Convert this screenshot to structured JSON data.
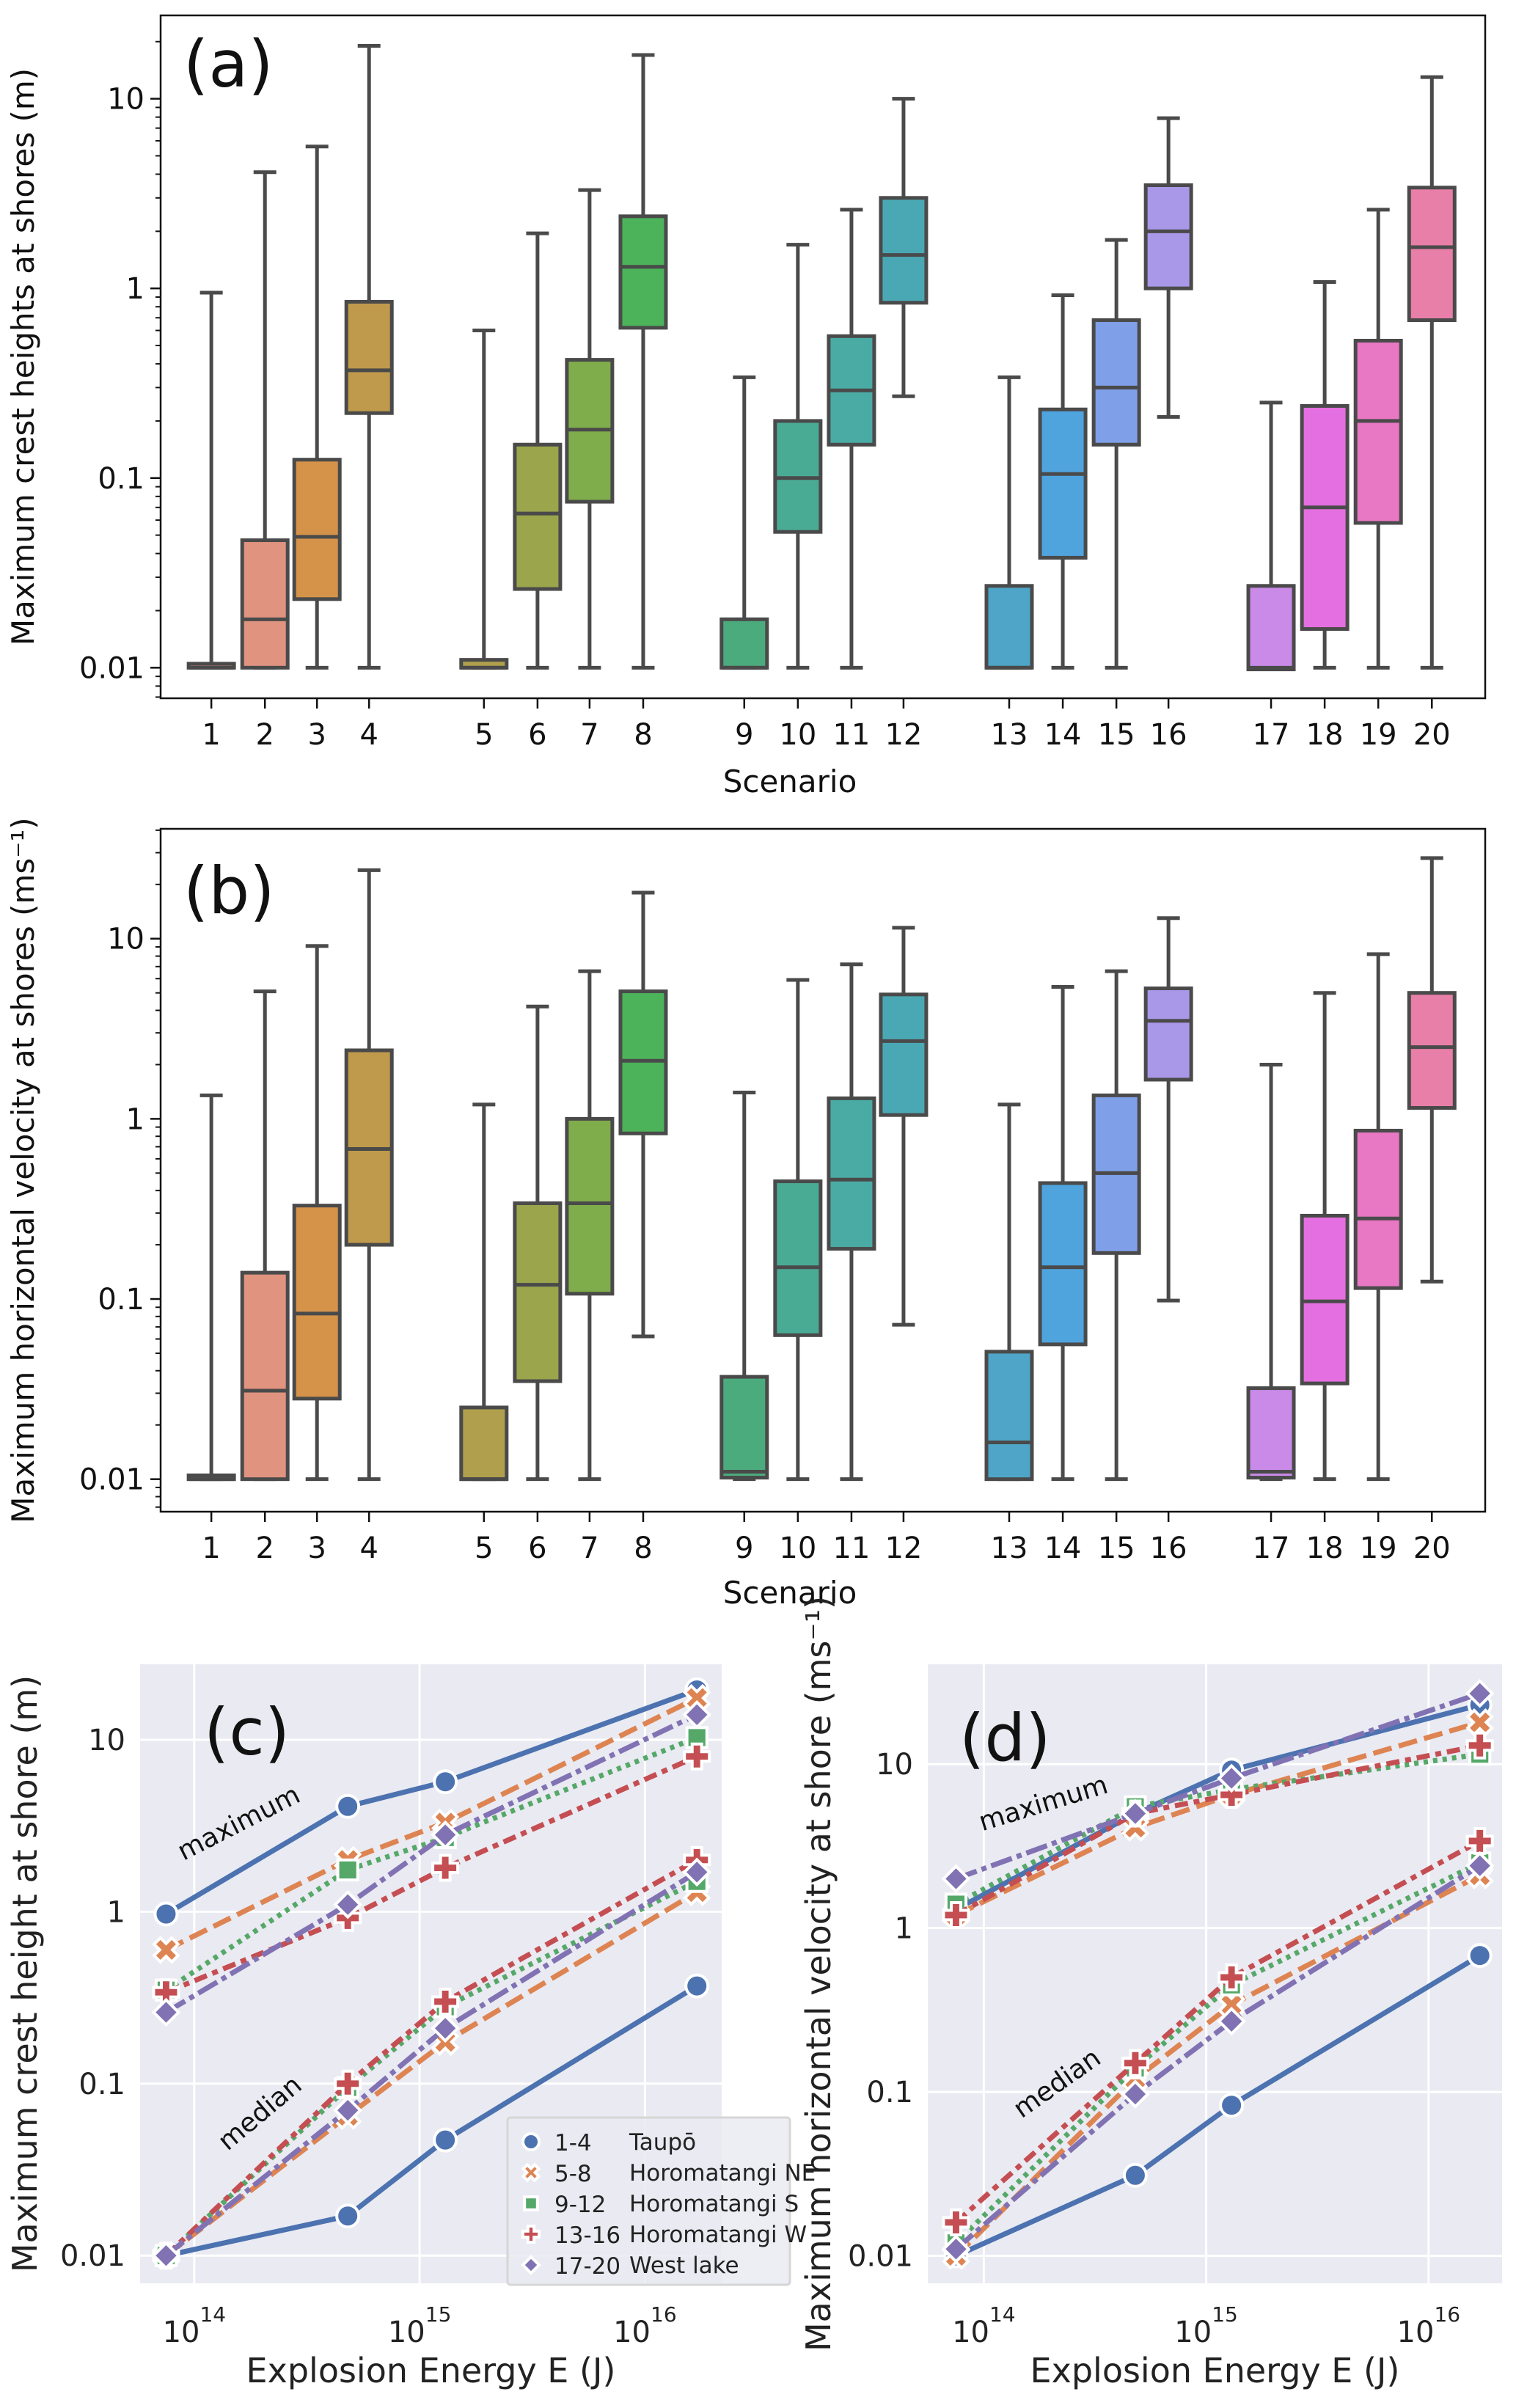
{
  "chart_data": [
    {
      "type": "box",
      "panel_label": "(a)",
      "xlabel": "Scenario",
      "ylabel": "Maximum crest heights at shores (m)",
      "yscale": "log",
      "ylim": [
        0.0069,
        27.5
      ],
      "yticks": [
        0.01,
        0.1,
        1,
        10
      ],
      "ytick_labels": [
        "0.01",
        "0.1",
        "1",
        "10"
      ],
      "categories": [
        "1",
        "2",
        "3",
        "4",
        "5",
        "6",
        "7",
        "8",
        "9",
        "10",
        "11",
        "12",
        "13",
        "14",
        "15",
        "16",
        "17",
        "18",
        "19",
        "20"
      ],
      "box_stats_order": [
        "whisker_low",
        "q1",
        "median",
        "q3",
        "whisker_high"
      ],
      "boxes": [
        [
          0.01,
          0.01,
          0.01,
          0.0105,
          0.95
        ],
        [
          0.01,
          0.01,
          0.018,
          0.047,
          4.1
        ],
        [
          0.01,
          0.023,
          0.049,
          0.125,
          5.6
        ],
        [
          0.01,
          0.22,
          0.37,
          0.85,
          19
        ],
        [
          0.01,
          0.01,
          0.01,
          0.011,
          0.6
        ],
        [
          0.01,
          0.026,
          0.065,
          0.15,
          1.95
        ],
        [
          0.01,
          0.075,
          0.18,
          0.42,
          3.3
        ],
        [
          0.01,
          0.62,
          1.3,
          2.4,
          17
        ],
        [
          0.01,
          0.01,
          0.01,
          0.018,
          0.34
        ],
        [
          0.01,
          0.052,
          0.1,
          0.2,
          1.7
        ],
        [
          0.01,
          0.15,
          0.29,
          0.56,
          2.6
        ],
        [
          0.27,
          0.84,
          1.5,
          3.0,
          10
        ],
        [
          0.01,
          0.01,
          0.01,
          0.027,
          0.34
        ],
        [
          0.01,
          0.038,
          0.105,
          0.23,
          0.92
        ],
        [
          0.01,
          0.15,
          0.3,
          0.68,
          1.8
        ],
        [
          0.21,
          1.0,
          2.0,
          3.5,
          7.9
        ],
        [
          0.01,
          0.0098,
          0.01,
          0.027,
          0.25
        ],
        [
          0.01,
          0.016,
          0.07,
          0.24,
          1.08
        ],
        [
          0.01,
          0.058,
          0.2,
          0.53,
          2.6
        ],
        [
          0.01,
          0.68,
          1.65,
          3.4,
          13
        ]
      ],
      "colors": [
        "#d98b7e",
        "#e0937f",
        "#d5934a",
        "#bf9a4c",
        "#b09f4c",
        "#9aa54c",
        "#80ad4c",
        "#4cb35a",
        "#4cab7d",
        "#4aab95",
        "#4aaba5",
        "#4aa8b4",
        "#4ea5c7",
        "#4fa4de",
        "#7f9fe8",
        "#a997e8",
        "#c98ae8",
        "#e46fe0",
        "#e877c4",
        "#e87fa8"
      ],
      "grid": false
    },
    {
      "type": "box",
      "panel_label": "(b)",
      "xlabel": "Scenario",
      "ylabel": "Maximum horizontal velocity at shores (ms⁻¹)",
      "yscale": "log",
      "ylim": [
        0.0066,
        40.7
      ],
      "yticks": [
        0.01,
        0.1,
        1,
        10
      ],
      "ytick_labels": [
        "0.01",
        "0.1",
        "1",
        "10"
      ],
      "categories": [
        "1",
        "2",
        "3",
        "4",
        "5",
        "6",
        "7",
        "8",
        "9",
        "10",
        "11",
        "12",
        "13",
        "14",
        "15",
        "16",
        "17",
        "18",
        "19",
        "20"
      ],
      "box_stats_order": [
        "whisker_low",
        "q1",
        "median",
        "q3",
        "whisker_high"
      ],
      "boxes": [
        [
          0.01,
          0.01,
          0.01,
          0.0105,
          1.35
        ],
        [
          0.01,
          0.01,
          0.031,
          0.14,
          5.1
        ],
        [
          0.01,
          0.028,
          0.083,
          0.33,
          9.1
        ],
        [
          0.01,
          0.2,
          0.68,
          2.4,
          24
        ],
        [
          0.01,
          0.01,
          0.01,
          0.025,
          1.2
        ],
        [
          0.01,
          0.035,
          0.12,
          0.34,
          4.2
        ],
        [
          0.01,
          0.107,
          0.34,
          1.0,
          6.6
        ],
        [
          0.062,
          0.83,
          2.1,
          5.1,
          18
        ],
        [
          0.01,
          0.0102,
          0.011,
          0.037,
          1.4
        ],
        [
          0.01,
          0.063,
          0.15,
          0.45,
          5.9
        ],
        [
          0.01,
          0.19,
          0.46,
          1.3,
          7.2
        ],
        [
          0.072,
          1.05,
          2.7,
          4.9,
          11.5
        ],
        [
          0.01,
          0.01,
          0.016,
          0.051,
          1.2
        ],
        [
          0.01,
          0.056,
          0.15,
          0.44,
          5.4
        ],
        [
          0.01,
          0.18,
          0.5,
          1.35,
          6.6
        ],
        [
          0.098,
          1.65,
          3.5,
          5.3,
          13
        ],
        [
          0.01,
          0.0102,
          0.011,
          0.032,
          2.0
        ],
        [
          0.01,
          0.034,
          0.097,
          0.29,
          5.0
        ],
        [
          0.01,
          0.115,
          0.28,
          0.86,
          8.2
        ],
        [
          0.125,
          1.15,
          2.5,
          5.0,
          28
        ]
      ],
      "colors": [
        "#d98b7e",
        "#e0937f",
        "#d5934a",
        "#bf9a4c",
        "#b09f4c",
        "#9aa54c",
        "#80ad4c",
        "#4cb35a",
        "#4cab7d",
        "#4aab95",
        "#4aaba5",
        "#4aa8b4",
        "#4ea5c7",
        "#4fa4de",
        "#7f9fe8",
        "#a997e8",
        "#c98ae8",
        "#e46fe0",
        "#e877c4",
        "#e87fa8"
      ],
      "grid": false
    },
    {
      "type": "line",
      "panel_label": "(c)",
      "xlabel": "Explosion Energy E (J)",
      "ylabel": "Maximum crest height at shore (m)",
      "xscale": "log",
      "yscale": "log",
      "xlim": [
        57500000000000.0,
        2.19e+16
      ],
      "ylim": [
        0.0069,
        27.5
      ],
      "xticks": [
        100000000000000.0,
        1000000000000000.0,
        1e+16
      ],
      "xtick_labels": [
        {
          "base": "10",
          "exp": "14"
        },
        {
          "base": "10",
          "exp": "15"
        },
        {
          "base": "10",
          "exp": "16"
        }
      ],
      "yticks": [
        0.01,
        0.1,
        1,
        10
      ],
      "ytick_labels": [
        "0.01",
        "0.1",
        "1",
        "10"
      ],
      "x": [
        75000000000000.0,
        480000000000000.0,
        1300000000000000.0,
        1.7e+16
      ],
      "annotations": [
        "maximum",
        "median"
      ],
      "grid": true,
      "background": "#eaeaf2",
      "legend_position": "bottom-right",
      "groups": [
        {
          "range": "1-4",
          "name": "Taupō",
          "color": "#4c72b0",
          "marker": "circle",
          "line": "solid",
          "maximum": [
            0.97,
            4.1,
            5.7,
            19.5
          ],
          "median": [
            0.01,
            0.017,
            0.047,
            0.37
          ]
        },
        {
          "range": "5-8",
          "name": "Horomatangi NE",
          "color": "#dd8452",
          "marker": "x",
          "line": "long-dash",
          "maximum": [
            0.6,
            2.0,
            3.3,
            17.5
          ],
          "median": [
            0.01,
            0.065,
            0.175,
            1.3
          ]
        },
        {
          "range": "9-12",
          "name": "Horomatangi S",
          "color": "#55a868",
          "marker": "square",
          "line": "dotted",
          "maximum": [
            0.35,
            1.75,
            2.7,
            10.3
          ],
          "median": [
            0.01,
            0.095,
            0.28,
            1.5
          ]
        },
        {
          "range": "13-16",
          "name": "Horomatangi W",
          "color": "#c44e52",
          "marker": "plus",
          "line": "dash-dot",
          "maximum": [
            0.34,
            0.92,
            1.8,
            8.0
          ],
          "median": [
            0.01,
            0.1,
            0.3,
            2.0
          ]
        },
        {
          "range": "17-20",
          "name": "West lake",
          "color": "#8172b3",
          "marker": "diamond",
          "line": "long-dash-dot",
          "maximum": [
            0.26,
            1.1,
            2.8,
            14
          ],
          "median": [
            0.01,
            0.07,
            0.21,
            1.7
          ]
        }
      ]
    },
    {
      "type": "line",
      "panel_label": "(d)",
      "xlabel": "Explosion Energy E (J)",
      "ylabel": "Maximum horizontal velocity at shore (ms⁻¹)",
      "xscale": "log",
      "yscale": "log",
      "xlim": [
        56000000000000.0,
        2.14e+16
      ],
      "ylim": [
        0.0068,
        40.7
      ],
      "xticks": [
        100000000000000.0,
        1000000000000000.0,
        1e+16
      ],
      "xtick_labels": [
        {
          "base": "10",
          "exp": "14"
        },
        {
          "base": "10",
          "exp": "15"
        },
        {
          "base": "10",
          "exp": "16"
        }
      ],
      "yticks": [
        0.01,
        0.1,
        1,
        10
      ],
      "ytick_labels": [
        "0.01",
        "0.1",
        "1",
        "10"
      ],
      "x": [
        75000000000000.0,
        480000000000000.0,
        1300000000000000.0,
        1.7e+16
      ],
      "annotations": [
        "maximum",
        "median"
      ],
      "grid": true,
      "background": "#eaeaf2",
      "groups": [
        {
          "range": "1-4",
          "name": "Taupō",
          "color": "#4c72b0",
          "marker": "circle",
          "line": "solid",
          "maximum": [
            1.3,
            5.0,
            9.2,
            23
          ],
          "median": [
            0.01,
            0.031,
            0.083,
            0.68
          ]
        },
        {
          "range": "5-8",
          "name": "Horomatangi NE",
          "color": "#dd8452",
          "marker": "x",
          "line": "long-dash",
          "maximum": [
            1.2,
            4.1,
            6.5,
            18
          ],
          "median": [
            0.01,
            0.12,
            0.34,
            2.1
          ]
        },
        {
          "range": "9-12",
          "name": "Horomatangi S",
          "color": "#55a868",
          "marker": "square",
          "line": "dotted",
          "maximum": [
            1.4,
            5.5,
            7.0,
            11.5
          ],
          "median": [
            0.012,
            0.14,
            0.45,
            2.5
          ]
        },
        {
          "range": "13-16",
          "name": "Horomatangi W",
          "color": "#c44e52",
          "marker": "plus",
          "line": "dash-dot",
          "maximum": [
            1.2,
            5.0,
            6.5,
            13
          ],
          "median": [
            0.016,
            0.15,
            0.5,
            3.4
          ]
        },
        {
          "range": "17-20",
          "name": "West lake",
          "color": "#8172b3",
          "marker": "diamond",
          "line": "long-dash-dot",
          "maximum": [
            2.0,
            5.0,
            8.2,
            27
          ],
          "median": [
            0.011,
            0.097,
            0.27,
            2.4
          ]
        }
      ]
    }
  ]
}
